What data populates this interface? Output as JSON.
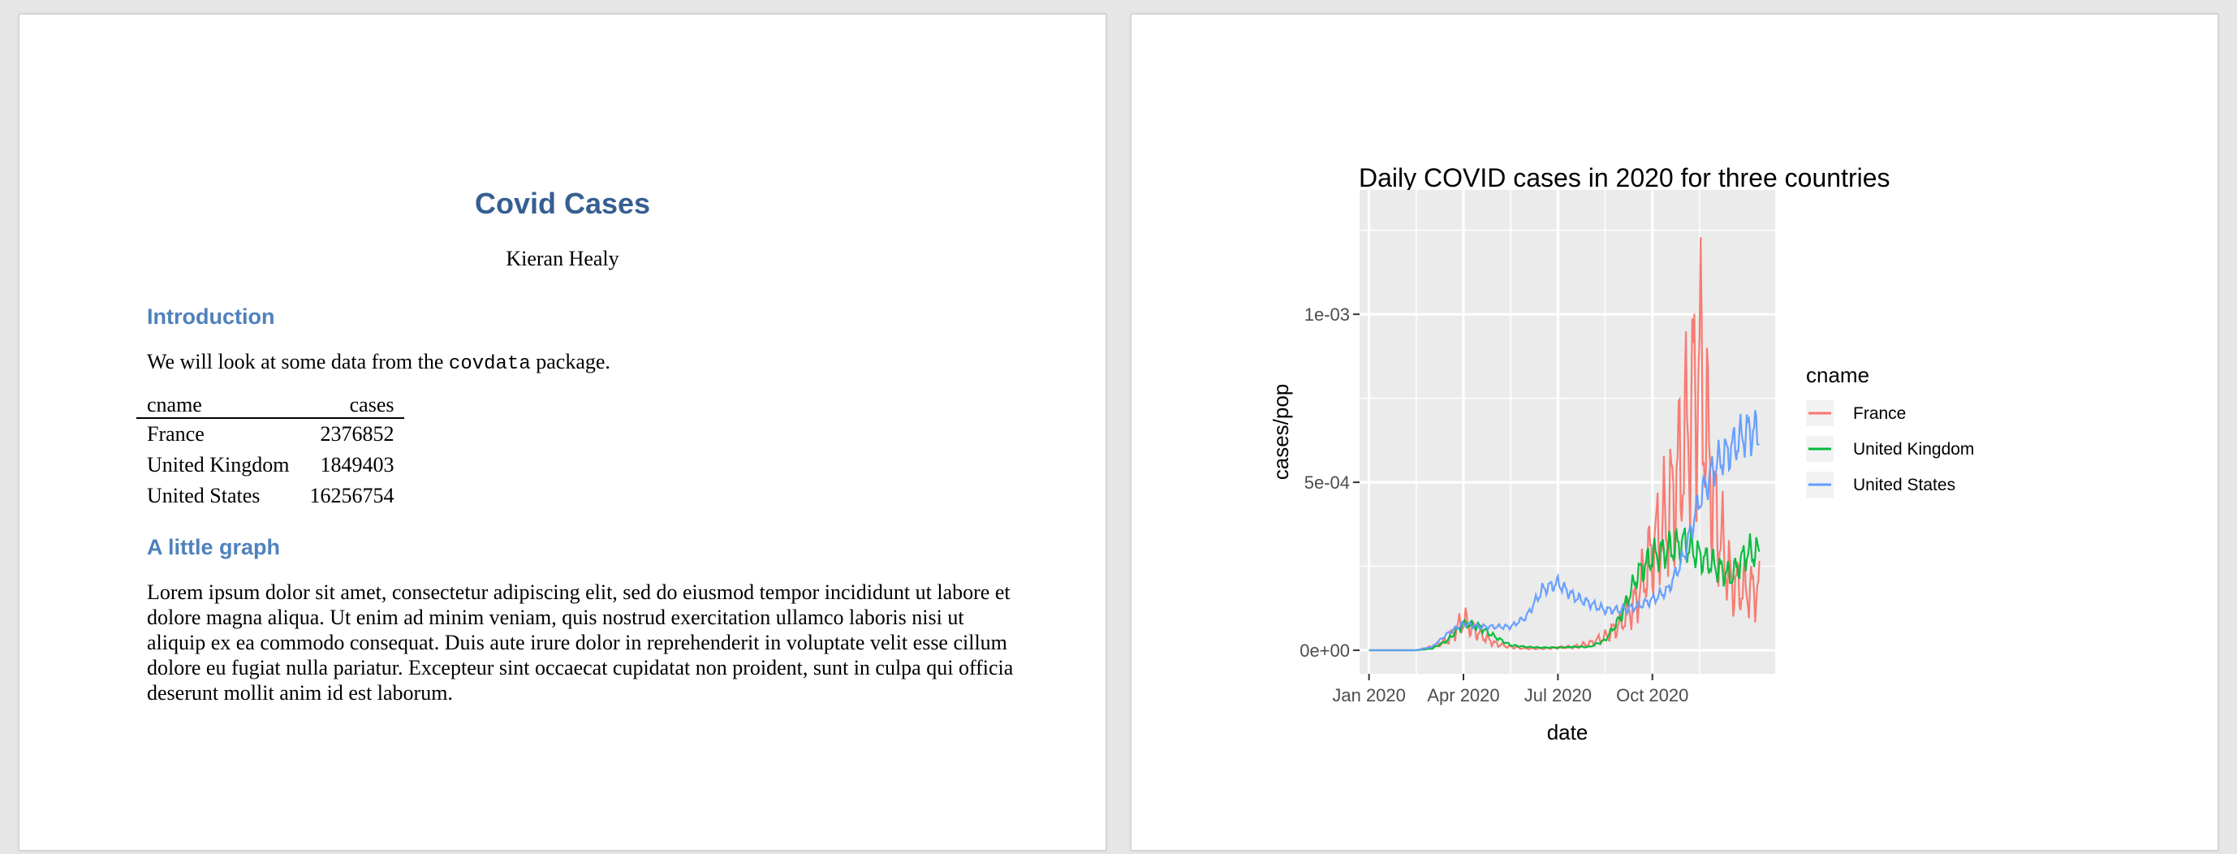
{
  "document": {
    "title": "Covid Cases",
    "author": "Kieran Healy",
    "sections": {
      "intro_heading": "Introduction",
      "intro_text_before": "We will look at some data from the ",
      "intro_code": "covdata",
      "intro_text_after": " package.",
      "graph_heading": "A little graph",
      "graph_paragraph": "Lorem ipsum dolor sit amet, consectetur adipiscing elit, sed do eiusmod tempor incididunt ut labore et dolore magna aliqua. Ut enim ad minim veniam, quis nostrud exercitation ullamco laboris nisi ut aliquip ex ea commodo consequat. Duis aute irure dolor in reprehenderit in voluptate velit esse cillum dolore eu fugiat nulla pariatur. Excepteur sint occaecat cupidatat non proident, sunt in culpa qui officia deserunt mollit anim id est laborum."
    },
    "table": {
      "headers": [
        "cname",
        "cases"
      ],
      "rows": [
        [
          "France",
          "2376852"
        ],
        [
          "United Kingdom",
          "1849403"
        ],
        [
          "United States",
          "16256754"
        ]
      ]
    }
  },
  "chart_data": {
    "type": "line",
    "title": "Daily COVID cases in 2020 for three countries",
    "xlabel": "date",
    "ylabel": "cases/pop",
    "x_ticks": [
      "Jan 2020",
      "Apr 2020",
      "Jul 2020",
      "Oct 2020"
    ],
    "y_ticks": [
      "0e+00",
      "5e-04",
      "1e-03"
    ],
    "ylim": [
      -7e-05,
      0.00137
    ],
    "x_domain_months": [
      -0.3,
      12.9
    ],
    "legend": {
      "title": "cname",
      "position": "right"
    },
    "x_months": [
      0,
      0.5,
      1,
      1.5,
      2,
      2.5,
      3,
      3.5,
      4,
      4.5,
      5,
      5.5,
      6,
      6.5,
      7,
      7.5,
      8,
      8.5,
      9,
      9.5,
      10,
      10.5,
      11,
      11.5,
      12
    ],
    "series": [
      {
        "name": "France",
        "color": "#F8766D",
        "values": [
          0,
          0,
          0,
          0,
          1e-05,
          3e-05,
          9e-05,
          5e-05,
          2e-05,
          1e-05,
          5e-06,
          5e-06,
          8e-06,
          1e-05,
          2e-05,
          4e-05,
          8e-05,
          0.00015,
          0.0003,
          0.0004,
          0.0006,
          0.00085,
          0.0004,
          0.0002,
          0.00018
        ]
      },
      {
        "name": "United Kingdom",
        "color": "#00BA38",
        "values": [
          0,
          0,
          0,
          0,
          5e-06,
          3e-05,
          8e-05,
          7e-05,
          4e-05,
          1.5e-05,
          1e-05,
          8e-06,
          8e-06,
          1e-05,
          1e-05,
          3e-05,
          0.0001,
          0.00022,
          0.00028,
          0.0003,
          0.00032,
          0.00028,
          0.00025,
          0.00022,
          0.00029
        ]
      },
      {
        "name": "United States",
        "color": "#619CFF",
        "values": [
          0,
          0,
          0,
          0,
          1e-05,
          5e-05,
          8e-05,
          7e-05,
          7e-05,
          7e-05,
          0.0001,
          0.00018,
          0.0002,
          0.00016,
          0.00014,
          0.00012,
          0.00012,
          0.00013,
          0.00015,
          0.00018,
          0.00028,
          0.00045,
          0.00055,
          0.0006,
          0.00065
        ]
      }
    ]
  }
}
